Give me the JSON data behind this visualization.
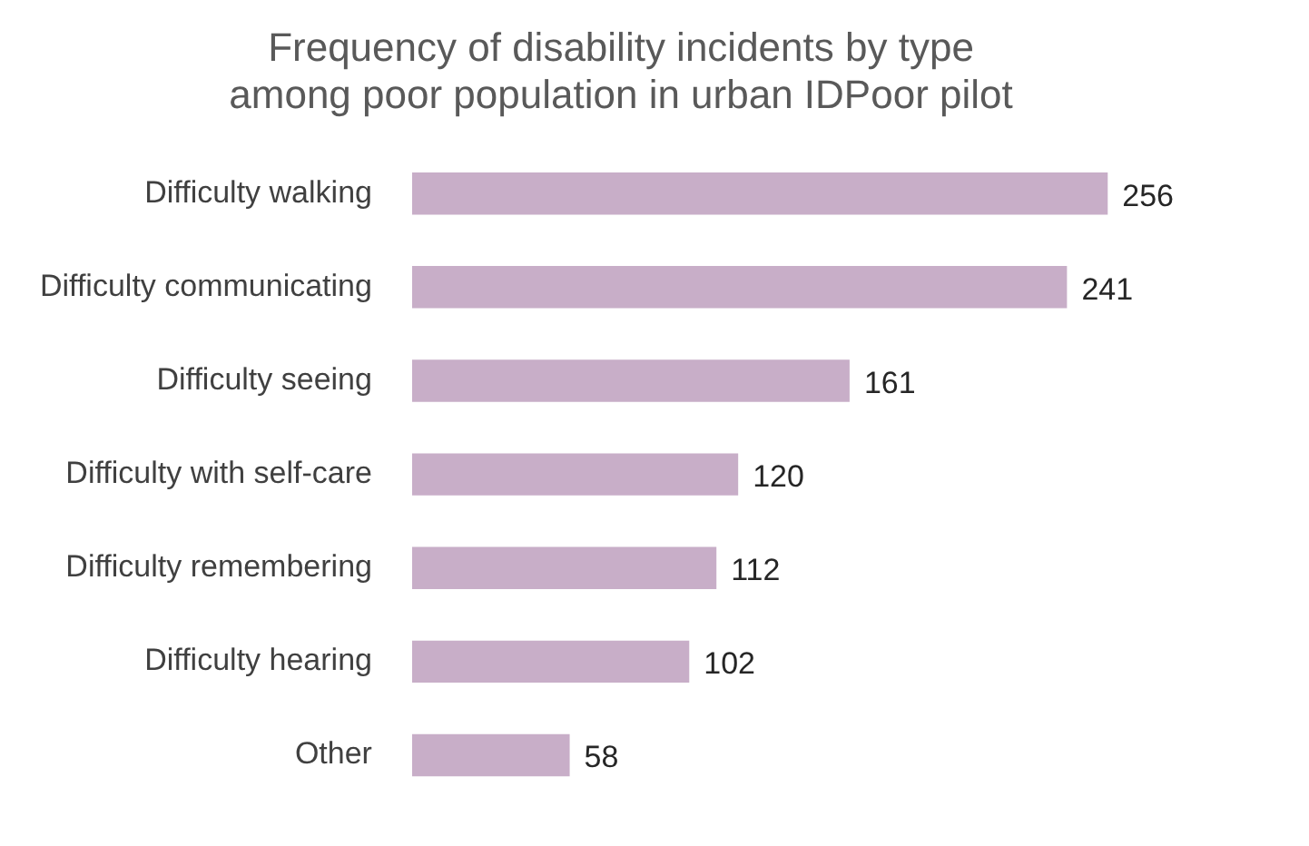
{
  "chart_data": {
    "type": "bar",
    "orientation": "horizontal",
    "title": [
      "Frequency of disability incidents by type",
      "among poor population in urban IDPoor pilot"
    ],
    "categories": [
      "Difficulty walking",
      "Difficulty communicating",
      "Difficulty seeing",
      "Difficulty with self-care",
      "Difficulty remembering",
      "Difficulty hearing",
      "Other"
    ],
    "values": [
      256,
      241,
      161,
      120,
      112,
      102,
      58
    ],
    "color": "#c8aec8",
    "data_labels": true,
    "legend": false,
    "tick_labels": "y"
  }
}
